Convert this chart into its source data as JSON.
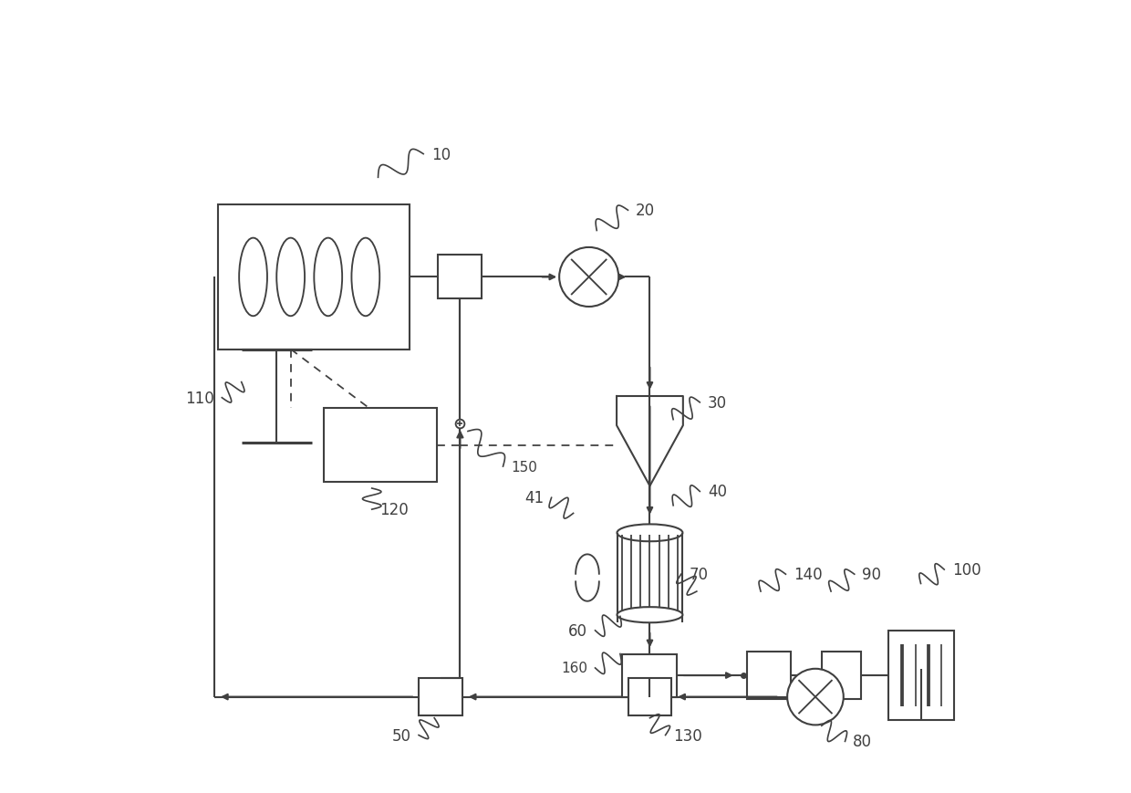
{
  "bg": "#ffffff",
  "lc": "#404040",
  "lw": 1.5,
  "figw": 12.4,
  "figh": 8.7
}
